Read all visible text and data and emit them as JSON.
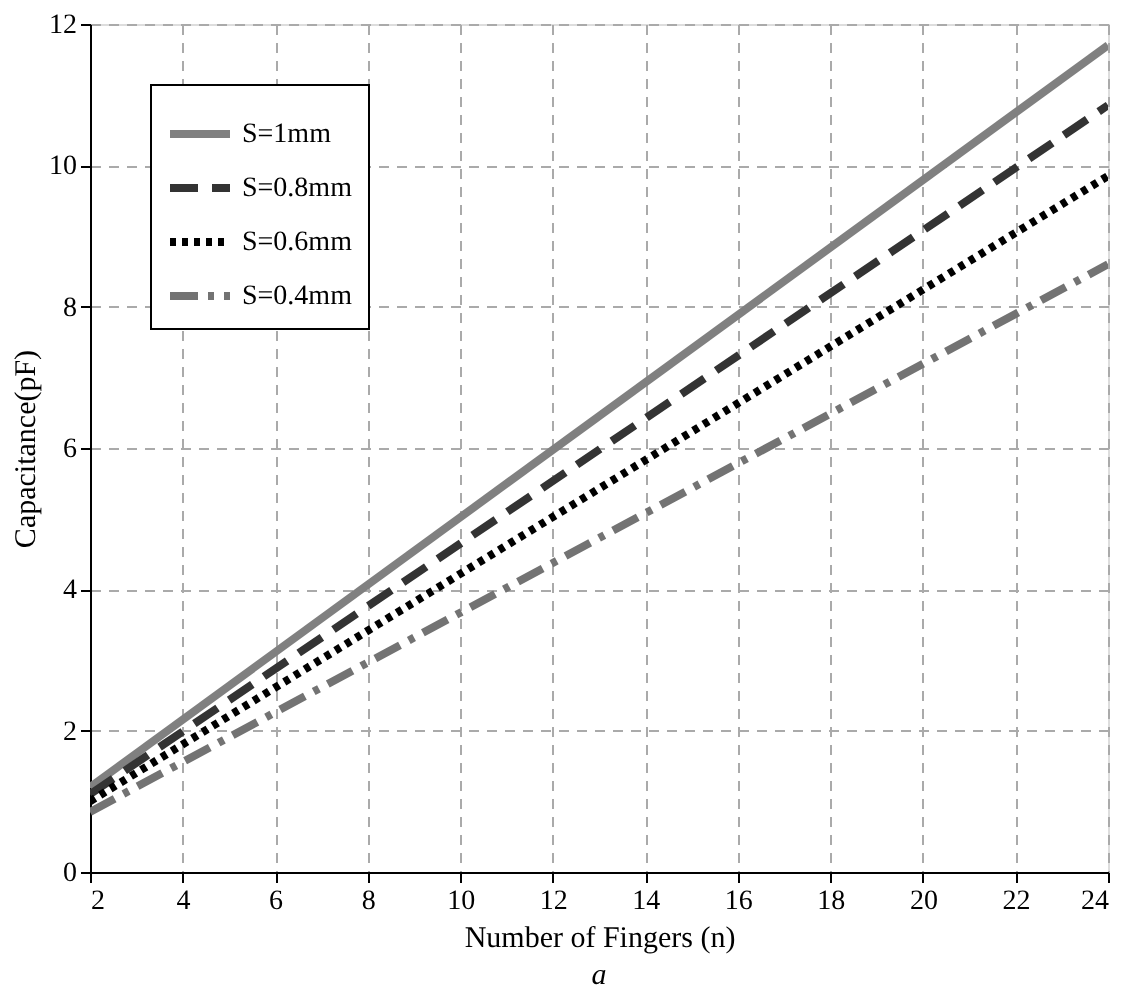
{
  "chart_data": {
    "type": "line",
    "xlabel": "Number of Fingers (n)",
    "ylabel": "Capacitance(pF)",
    "annotations": [
      "a"
    ],
    "x": [
      2,
      24
    ],
    "series": [
      {
        "name": "S=1mm",
        "color": "#808080",
        "line_style": "solid",
        "values": [
          1.2,
          11.7
        ]
      },
      {
        "name": "S=0.8mm",
        "color": "#333333",
        "line_style": "dashed",
        "values": [
          1.1,
          10.85
        ]
      },
      {
        "name": "S=0.6mm",
        "color": "#000000",
        "line_style": "dotted",
        "values": [
          1.0,
          9.85
        ]
      },
      {
        "name": "S=0.4mm",
        "color": "#737373",
        "line_style": "dashdot",
        "values": [
          0.85,
          8.6
        ]
      }
    ],
    "xlim": [
      2,
      24
    ],
    "xticks": [
      2,
      4,
      6,
      8,
      10,
      12,
      14,
      16,
      18,
      20,
      22,
      24
    ],
    "ylim": [
      0,
      12
    ],
    "yticks": [
      0,
      2,
      4,
      6,
      8,
      10,
      12
    ],
    "grid": true,
    "legend": "top left",
    "marker": "none"
  }
}
